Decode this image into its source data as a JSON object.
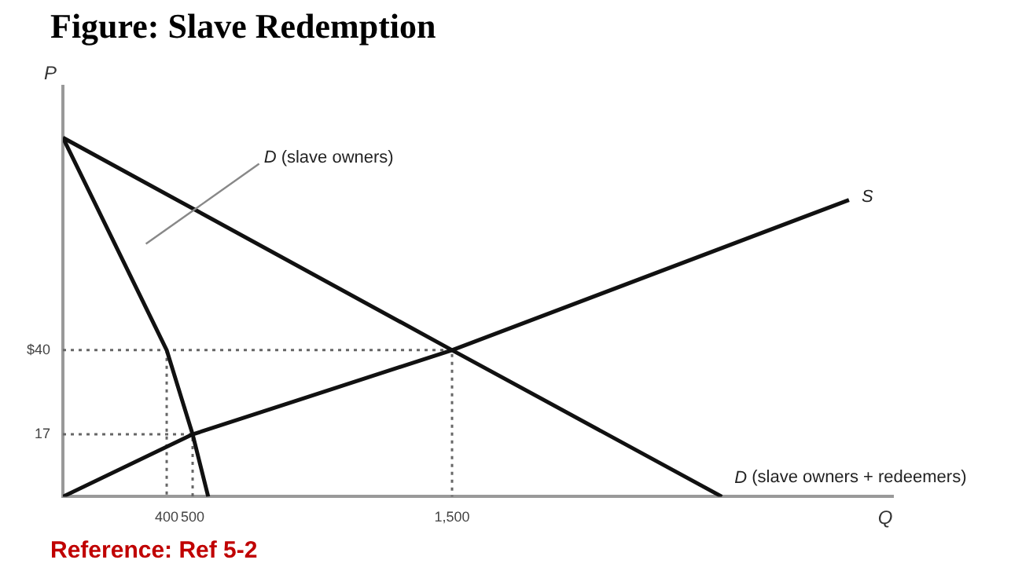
{
  "chart_data": {
    "type": "line",
    "title": "Figure: Slave Redemption",
    "xlabel": "Q",
    "ylabel": "P",
    "annotations": [
      "Reference: Ref 5-2"
    ],
    "xlim": [
      0,
      3200
    ],
    "ylim": [
      0,
      112
    ],
    "xticks": [
      400,
      500,
      {
        "value": 1500,
        "label": "1,500"
      }
    ],
    "yticks": [
      17,
      {
        "value": 40,
        "label": "$40"
      }
    ],
    "grid": false,
    "legend": false,
    "marker": "none",
    "series": [
      {
        "name": "D (slave owners)",
        "color": "#111111",
        "x": [
          0,
          400,
          500,
          560
        ],
        "values": [
          98,
          40,
          17,
          0
        ]
      },
      {
        "name": "D (slave owners + redeemers)",
        "color": "#111111",
        "x": [
          0,
          1500,
          2540
        ],
        "values": [
          98,
          40,
          0
        ]
      },
      {
        "name": "S",
        "color": "#111111",
        "x": [
          0,
          500,
          1500,
          3030
        ],
        "values": [
          0,
          17,
          40,
          81
        ]
      },
      {
        "color": "#666666",
        "line_style": "dotted",
        "x": [
          0,
          1500,
          1500
        ],
        "values": [
          40,
          40,
          0
        ]
      },
      {
        "color": "#666666",
        "line_style": "dotted",
        "x": [
          0,
          500,
          500
        ],
        "values": [
          17,
          17,
          0
        ]
      },
      {
        "color": "#666666",
        "line_style": "dotted",
        "x": [
          400,
          400
        ],
        "values": [
          40,
          0
        ]
      }
    ]
  }
}
